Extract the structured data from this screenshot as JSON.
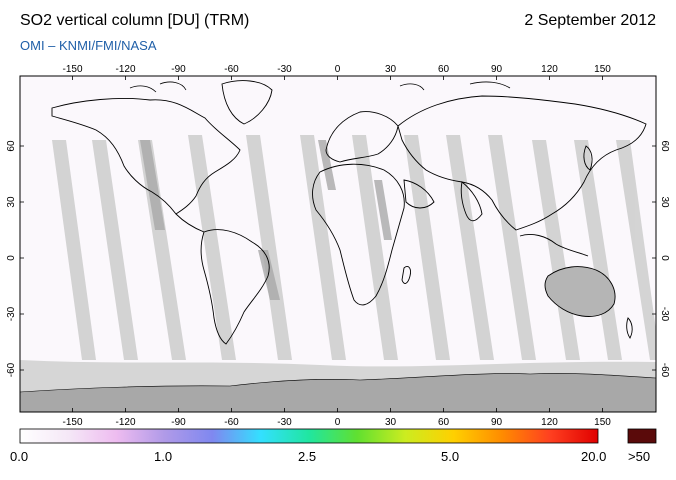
{
  "header": {
    "title": "SO2 vertical column [DU] (TRM)",
    "date": "2 September 2012",
    "credit": "OMI  –  KNMI/FMI/NASA"
  },
  "map": {
    "lon_ticks": [
      "-150",
      "-120",
      "-90",
      "-60",
      "-30",
      "0",
      "30",
      "60",
      "90",
      "120",
      "150"
    ],
    "lat_ticks": [
      "60",
      "30",
      "0",
      "-30",
      "-60"
    ]
  },
  "colorbar": {
    "labels": [
      "0.0",
      "1.0",
      "2.5",
      "5.0",
      "20.0"
    ],
    "overflow_label": ">50",
    "overflow_color": "#5a0a0a",
    "stops": [
      "#ffffff",
      "#f5e8f7",
      "#eebcf0",
      "#b09ae8",
      "#7f88f0",
      "#33e0ff",
      "#20e6a0",
      "#60e030",
      "#ccec20",
      "#ffd000",
      "#ff8c00",
      "#ff4020",
      "#e00000"
    ]
  }
}
